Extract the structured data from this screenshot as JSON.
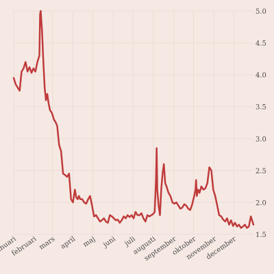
{
  "chart_data": {
    "type": "line",
    "title": "",
    "xlabel": "",
    "ylabel": "",
    "ylim": [
      1.5,
      5.0
    ],
    "y_ticks": [
      "1.5",
      "2.0",
      "2.5",
      "3.0",
      "3.5",
      "4.0",
      "4.5",
      "5.0"
    ],
    "y_axis_side": "right",
    "grid": true,
    "x_ticks": [
      "januari",
      "februari",
      "mars",
      "april",
      "maj",
      "juni",
      "juli",
      "augusti",
      "september",
      "oktober",
      "november",
      "december"
    ],
    "colors": {
      "background": "#f6e9e4",
      "grid": "#ecdcd6",
      "line": "#bf3b3b"
    },
    "series": [
      {
        "x": [
          "2021-01-01",
          "2021-01-04",
          "2021-01-07",
          "2021-01-10",
          "2021-01-13",
          "2021-01-16",
          "2021-01-19",
          "2021-01-22",
          "2021-01-25",
          "2021-01-28",
          "2021-01-31",
          "2021-02-03",
          "2021-02-06",
          "2021-02-09",
          "2021-02-10",
          "2021-02-11",
          "2021-02-13",
          "2021-02-15",
          "2021-02-17",
          "2021-02-19",
          "2021-02-21",
          "2021-02-23",
          "2021-02-25",
          "2021-02-28",
          "2021-03-03",
          "2021-03-06",
          "2021-03-08",
          "2021-03-11",
          "2021-03-14",
          "2021-03-17",
          "2021-03-20",
          "2021-03-23",
          "2021-03-26",
          "2021-03-29",
          "2021-04-01",
          "2021-04-04",
          "2021-04-06",
          "2021-04-08",
          "2021-04-10",
          "2021-04-12",
          "2021-04-15",
          "2021-04-18",
          "2021-04-21",
          "2021-04-24",
          "2021-04-27",
          "2021-04-30",
          "2021-05-03",
          "2021-05-06",
          "2021-05-09",
          "2021-05-12",
          "2021-05-15",
          "2021-05-18",
          "2021-05-21",
          "2021-05-24",
          "2021-05-27",
          "2021-05-30",
          "2021-06-02",
          "2021-06-05",
          "2021-06-08",
          "2021-06-11",
          "2021-06-14",
          "2021-06-17",
          "2021-06-20",
          "2021-06-23",
          "2021-06-26",
          "2021-06-29",
          "2021-07-02",
          "2021-07-05",
          "2021-07-08",
          "2021-07-11",
          "2021-07-14",
          "2021-07-17",
          "2021-07-20",
          "2021-07-23",
          "2021-07-26",
          "2021-07-29",
          "2021-08-01",
          "2021-08-03",
          "2021-08-05",
          "2021-08-06",
          "2021-08-07",
          "2021-08-09",
          "2021-08-11",
          "2021-08-13",
          "2021-08-15",
          "2021-08-17",
          "2021-08-19",
          "2021-08-21",
          "2021-08-24",
          "2021-08-27",
          "2021-08-30",
          "2021-09-02",
          "2021-09-05",
          "2021-09-08",
          "2021-09-11",
          "2021-09-14",
          "2021-09-17",
          "2021-09-20",
          "2021-09-23",
          "2021-09-26",
          "2021-09-29",
          "2021-10-02",
          "2021-10-04",
          "2021-10-05",
          "2021-10-06",
          "2021-10-08",
          "2021-10-10",
          "2021-10-13",
          "2021-10-16",
          "2021-10-19",
          "2021-10-22",
          "2021-10-25",
          "2021-10-28",
          "2021-10-31",
          "2021-11-03",
          "2021-11-06",
          "2021-11-09",
          "2021-11-12",
          "2021-11-15",
          "2021-11-18",
          "2021-11-21",
          "2021-11-24",
          "2021-11-27",
          "2021-11-30",
          "2021-12-03",
          "2021-12-06",
          "2021-12-09",
          "2021-12-12",
          "2021-12-15",
          "2021-12-18",
          "2021-12-21",
          "2021-12-24",
          "2021-12-27",
          "2021-12-31"
        ],
        "y": [
          3.95,
          3.85,
          3.8,
          3.75,
          4.05,
          4.1,
          4.2,
          4.05,
          4.12,
          4.03,
          4.1,
          4.05,
          4.2,
          4.3,
          4.95,
          5.0,
          4.7,
          4.2,
          3.8,
          3.6,
          3.7,
          3.55,
          3.45,
          3.4,
          3.3,
          3.25,
          3.2,
          2.9,
          2.8,
          2.45,
          2.43,
          2.4,
          2.45,
          2.05,
          2.0,
          2.2,
          2.08,
          2.05,
          2.1,
          2.05,
          2.05,
          2.0,
          1.98,
          2.05,
          2.1,
          1.95,
          1.78,
          1.8,
          1.75,
          1.7,
          1.72,
          1.75,
          1.7,
          1.68,
          1.8,
          1.78,
          1.75,
          1.72,
          1.73,
          1.68,
          1.72,
          1.78,
          1.75,
          1.8,
          1.77,
          1.8,
          1.75,
          1.85,
          1.8,
          1.8,
          1.83,
          1.75,
          1.7,
          1.8,
          1.78,
          1.8,
          1.82,
          1.85,
          2.35,
          2.85,
          2.2,
          1.95,
          1.8,
          2.2,
          2.45,
          2.6,
          2.3,
          2.25,
          2.15,
          2.1,
          2.0,
          1.98,
          2.0,
          1.95,
          1.9,
          1.92,
          1.97,
          1.95,
          1.9,
          1.88,
          1.97,
          2.1,
          2.2,
          2.35,
          2.1,
          2.2,
          2.15,
          2.25,
          2.2,
          2.22,
          2.3,
          2.55,
          2.5,
          2.2,
          2.1,
          1.95,
          1.8,
          1.78,
          1.73,
          1.7,
          1.75,
          1.65,
          1.72,
          1.63,
          1.68,
          1.62,
          1.65,
          1.6,
          1.62,
          1.65,
          1.6,
          1.62,
          1.78,
          1.65
        ]
      }
    ]
  }
}
